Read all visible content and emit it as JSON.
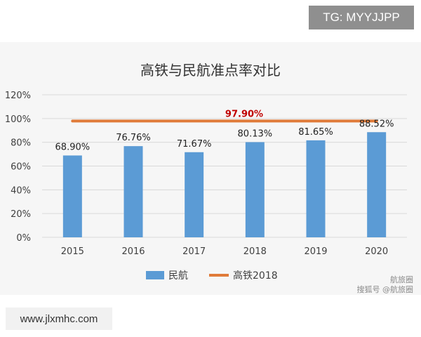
{
  "overlay": {
    "tg_badge": "TG: MYYJJPP",
    "url_badge": "www.jlxmhc.com",
    "credit_line1": "航旅圈",
    "credit_line2": "搜狐号 @航旅圈"
  },
  "colors": {
    "bar": "#5b9bd5",
    "line": "#e07b39",
    "line_label": "#c00000",
    "grid": "#d9d9d9",
    "panel": "#f6f6f6"
  },
  "chart_data": {
    "type": "bar",
    "title": "高铁与民航准点率对比",
    "categories": [
      "2015",
      "2016",
      "2017",
      "2018",
      "2019",
      "2020"
    ],
    "series": [
      {
        "name": "民航",
        "type": "bar",
        "values": [
          68.9,
          76.76,
          71.67,
          80.13,
          81.65,
          88.52
        ],
        "labels": [
          "68.90%",
          "76.76%",
          "71.67%",
          "80.13%",
          "81.65%",
          "88.52%"
        ]
      },
      {
        "name": "高铁2018",
        "type": "line",
        "values": [
          97.9,
          97.9,
          97.9,
          97.9,
          97.9,
          97.9
        ],
        "label": "97.90%"
      }
    ],
    "ylim": [
      0,
      120
    ],
    "yticks": [
      "0%",
      "20%",
      "40%",
      "60%",
      "80%",
      "100%",
      "120%"
    ],
    "ytick_values": [
      0,
      20,
      40,
      60,
      80,
      100,
      120
    ],
    "grid": true,
    "legend": "bottom"
  }
}
